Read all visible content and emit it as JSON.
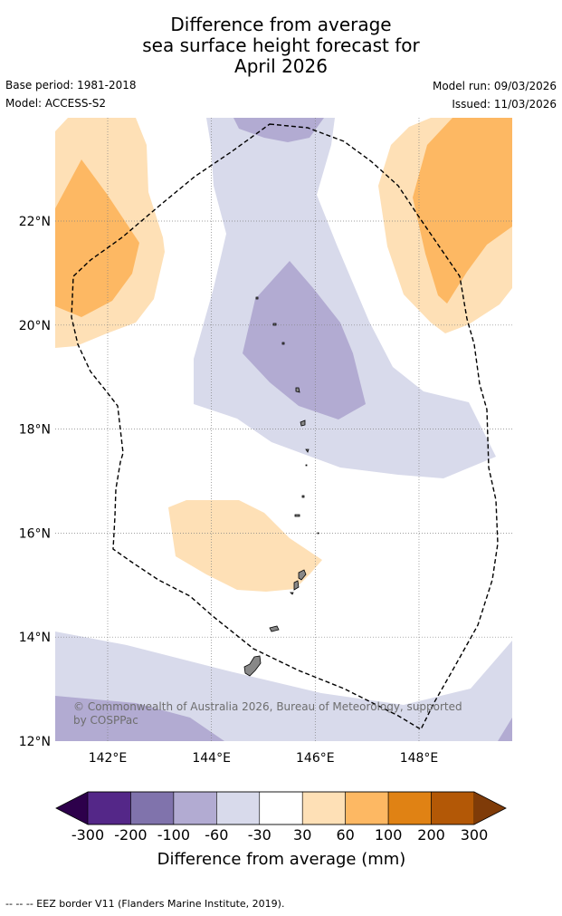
{
  "title": {
    "line1": "Difference from average",
    "line2": "sea surface height forecast for",
    "line3": "April 2026"
  },
  "meta": {
    "base_period": "Base period: 1981-2018",
    "model": "Model: ACCESS-S2",
    "model_run": "Model run: 09/03/2026",
    "issued": "Issued: 11/03/2026"
  },
  "map": {
    "lat_ticks": [
      {
        "value": 22,
        "label": "22°N"
      },
      {
        "value": 20,
        "label": "20°N"
      },
      {
        "value": 18,
        "label": "18°N"
      },
      {
        "value": 16,
        "label": "16°N"
      },
      {
        "value": 14,
        "label": "14°N"
      },
      {
        "value": 12,
        "label": "12°N"
      }
    ],
    "lon_ticks": [
      {
        "value": 142,
        "label": "142°E"
      },
      {
        "value": 144,
        "label": "144°E"
      },
      {
        "value": 146,
        "label": "146°E"
      },
      {
        "value": 148,
        "label": "148°E"
      }
    ],
    "copyright": "© Commonwealth of Australia 2026, Bureau of Meteorology, supported by COSPPac"
  },
  "colorbar": {
    "label": "Difference from average (mm)",
    "ticks": [
      "-300",
      "-200",
      "-100",
      "-60",
      "-30",
      "30",
      "60",
      "100",
      "200",
      "300"
    ],
    "colors": {
      "below_min": "#2d004b",
      "bins": [
        "#542788",
        "#8073ac",
        "#b2abd2",
        "#d8daeb",
        "#ffffff",
        "#fee0b6",
        "#fdb863",
        "#e08214",
        "#b35806"
      ],
      "above_max": "#7f3b08"
    }
  },
  "footnote": "--  --  -- EEZ border V11 (Flanders Marine Institute, 2019)."
}
